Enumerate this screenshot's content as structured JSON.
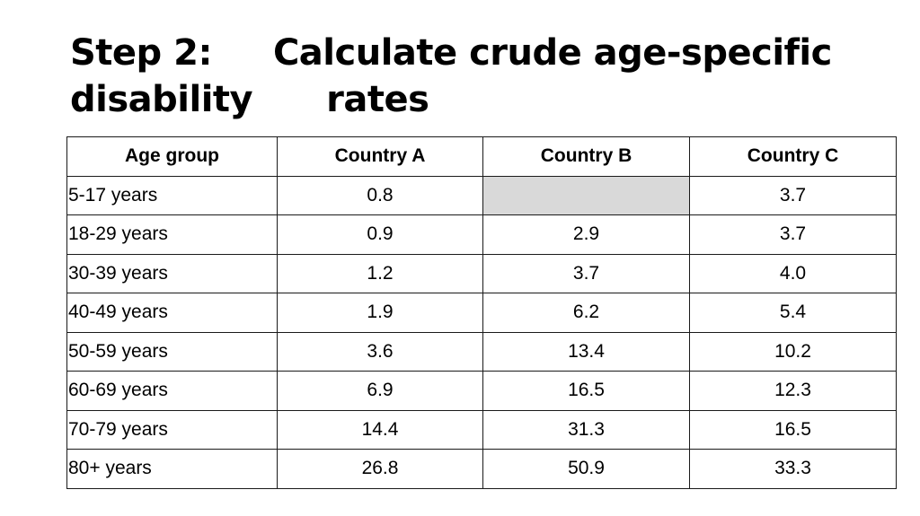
{
  "title": {
    "line1_part1": "Step 2:",
    "line1_part2": "Calculate crude age-specific",
    "line2_part1": "disability",
    "line2_part2": "rates"
  },
  "table": {
    "headers": [
      "Age group",
      "Country A",
      "Country B",
      "Country C"
    ],
    "rows": [
      {
        "age": "5-17 years",
        "a": "0.8",
        "b": "",
        "c": "3.7"
      },
      {
        "age": "18-29 years",
        "a": "0.9",
        "b": "2.9",
        "c": "3.7"
      },
      {
        "age": "30-39 years",
        "a": "1.2",
        "b": "3.7",
        "c": "4.0"
      },
      {
        "age": "40-49 years",
        "a": "1.9",
        "b": "6.2",
        "c": "5.4"
      },
      {
        "age": "50-59 years",
        "a": "3.6",
        "b": "13.4",
        "c": "10.2"
      },
      {
        "age": "60-69 years",
        "a": "6.9",
        "b": "16.5",
        "c": "12.3"
      },
      {
        "age": "70-79 years",
        "a": "14.4",
        "b": "31.3",
        "c": "16.5"
      },
      {
        "age": "80+ years",
        "a": "26.8",
        "b": "50.9",
        "c": "33.3"
      }
    ],
    "empty_cell_color": "#d9d9d9"
  }
}
